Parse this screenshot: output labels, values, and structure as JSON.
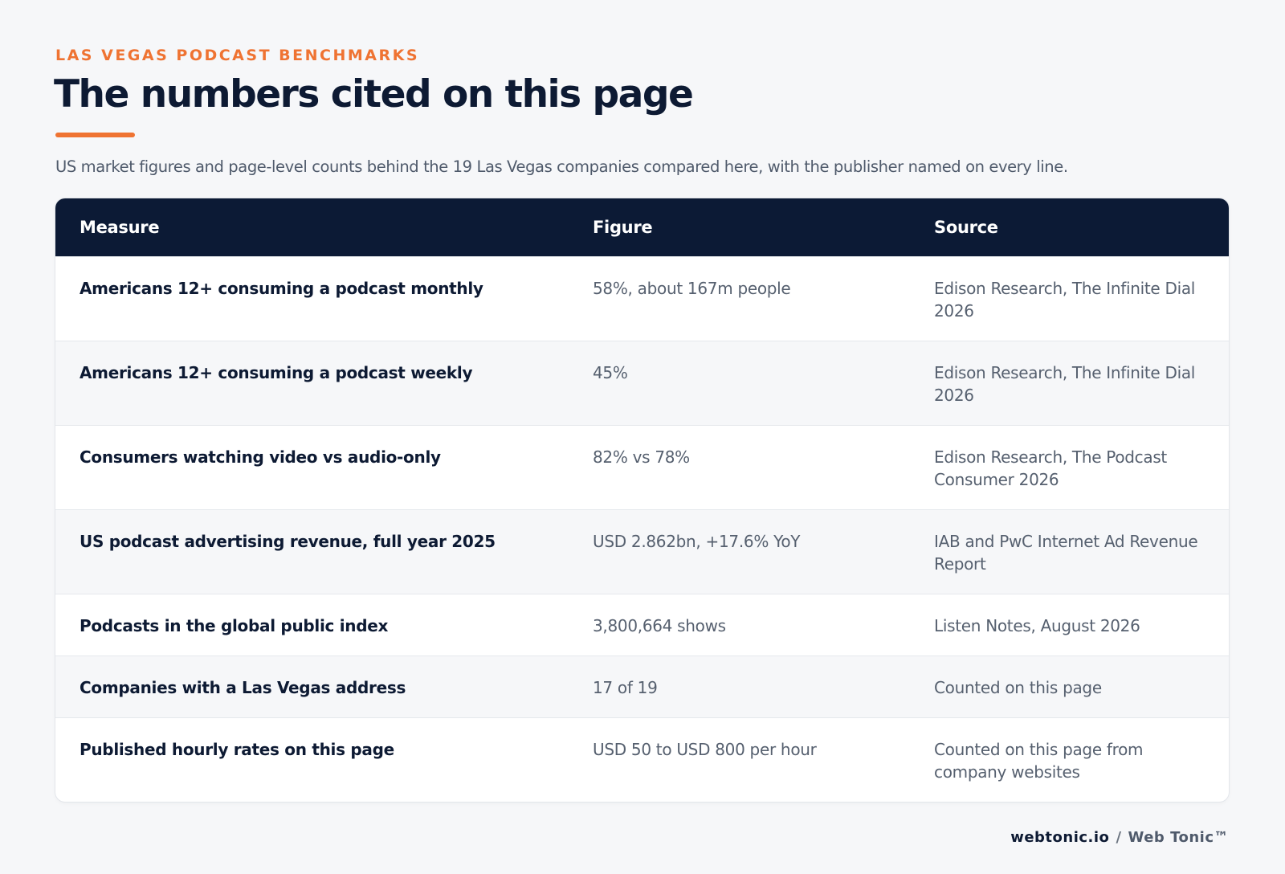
{
  "header": {
    "eyebrow": "LAS VEGAS PODCAST BENCHMARKS",
    "title": "The numbers cited on this page",
    "subtitle": "US market figures and page-level counts behind the 19 Las Vegas companies compared here, with the publisher named on every line."
  },
  "table": {
    "columns": [
      "Measure",
      "Figure",
      "Source"
    ],
    "rows": [
      [
        "Americans 12+ consuming a podcast monthly",
        "58%, about 167m people",
        "Edison Research, The Infinite Dial 2026"
      ],
      [
        "Americans 12+ consuming a podcast weekly",
        "45%",
        "Edison Research, The Infinite Dial 2026"
      ],
      [
        "Consumers watching video vs audio-only",
        "82% vs 78%",
        "Edison Research, The Podcast Consumer 2026"
      ],
      [
        "US podcast advertising revenue, full year 2025",
        "USD 2.862bn, +17.6% YoY",
        "IAB and PwC Internet Ad Revenue Report"
      ],
      [
        "Podcasts in the global public index",
        "3,800,664 shows",
        "Listen Notes, August 2026"
      ],
      [
        "Companies with a Las Vegas address",
        "17 of 19",
        "Counted on this page"
      ],
      [
        "Published hourly rates on this page",
        "USD 50 to USD 800 per hour",
        "Counted on this page from company websites"
      ]
    ]
  },
  "footer": {
    "site": "webtonic.io",
    "separator": "/",
    "brand": "Web Tonic™"
  }
}
